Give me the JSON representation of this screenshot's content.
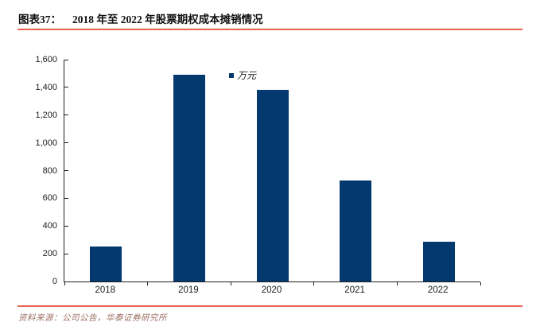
{
  "header": {
    "label": "图表37：",
    "title": "2018 年至 2022 年股票期权成本摊销情况"
  },
  "chart_data": {
    "type": "bar",
    "categories": [
      "2018",
      "2019",
      "2020",
      "2021",
      "2022"
    ],
    "values": [
      250,
      1490,
      1380,
      730,
      285
    ],
    "series_name": "万元",
    "unit_legend": "万元",
    "title": "2018 年至 2022 年股票期权成本摊销情况",
    "xlabel": "",
    "ylabel": "",
    "ylim": [
      0,
      1600
    ],
    "ytick_step": 200,
    "yticks": [
      "1,600",
      "1,400",
      "1,200",
      "1,000",
      "800",
      "600",
      "400",
      "200",
      "0"
    ],
    "grid": "off",
    "legend_position": "top-center"
  },
  "footer": {
    "source": "资料来源：公司公告，华泰证券研究所"
  },
  "colors": {
    "bar": "#04396F",
    "accent_line": "#E8604C",
    "source_text": "#9C6F63",
    "axis": "#1F1F1F"
  }
}
